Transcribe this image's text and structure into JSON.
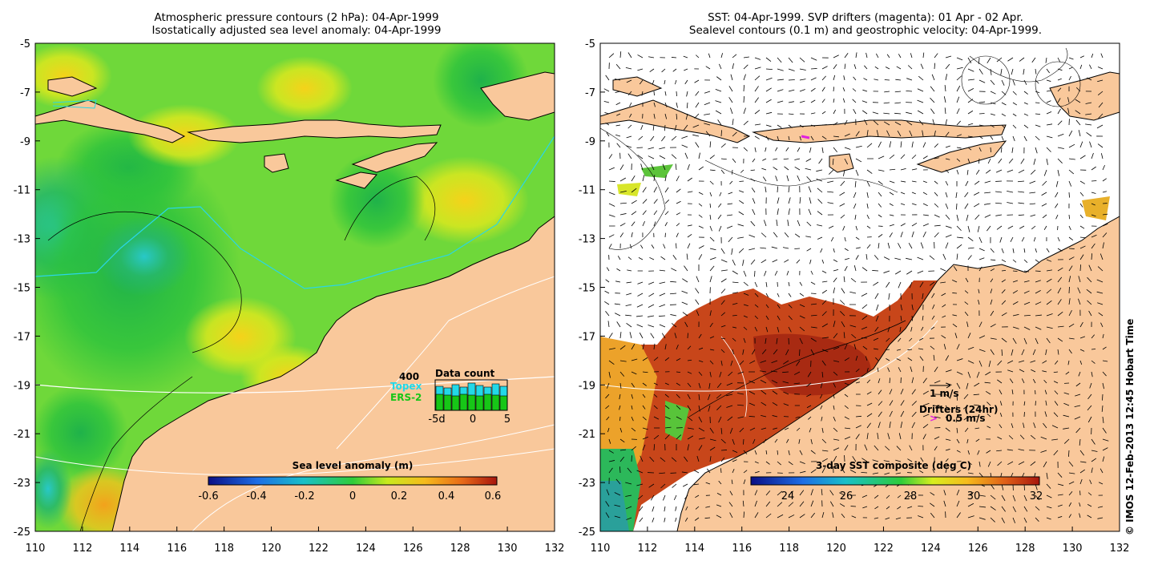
{
  "left_panel": {
    "title_line1": "Atmospheric pressure contours (2 hPa): 04-Apr-1999",
    "title_line2": "Isostatically adjusted sea level anomaly: 04-Apr-1999",
    "colorbar_label": "Sea level anomaly (m)",
    "colorbar_ticks": [
      "-0.6",
      "-0.4",
      "-0.2",
      "0",
      "0.2",
      "0.4",
      "0.6"
    ],
    "inset": {
      "title": "Data count",
      "ymax_label": "400",
      "series": [
        "Topex",
        "ERS-2"
      ],
      "x_ticks": [
        "-5d",
        "0",
        "5"
      ],
      "topex_color": "#22d8e8",
      "ers2_color": "#17c617"
    }
  },
  "right_panel": {
    "title_line1": "SST: 04-Apr-1999. SVP drifters (magenta): 01 Apr - 02 Apr.",
    "title_line2": "Sealevel contours (0.1 m) and geostrophic velocity: 04-Apr-1999.",
    "colorbar_label": "3-day SST composite (deg C)",
    "colorbar_ticks": [
      "24",
      "26",
      "28",
      "30",
      "32"
    ],
    "velocity_scale_label": "1 m/s",
    "drifters_label": "Drifters (24hr)",
    "drifter_scale_label": "0.5 m/s",
    "drifter_color": "#e020e0"
  },
  "axes": {
    "x_ticks": [
      "110",
      "112",
      "114",
      "116",
      "118",
      "120",
      "122",
      "124",
      "126",
      "128",
      "130",
      "132"
    ],
    "y_ticks": [
      "-5",
      "-7",
      "-9",
      "-11",
      "-13",
      "-15",
      "-17",
      "-19",
      "-21",
      "-23",
      "-25"
    ]
  },
  "credit": "© IMOS 12-Feb-2013 12:45 Hobart Time",
  "colors": {
    "land": "#f9c89b",
    "ocean_green": "#4cd33a",
    "ocean_yellow": "#d8ee1e",
    "sst_red": "#c8401a"
  }
}
